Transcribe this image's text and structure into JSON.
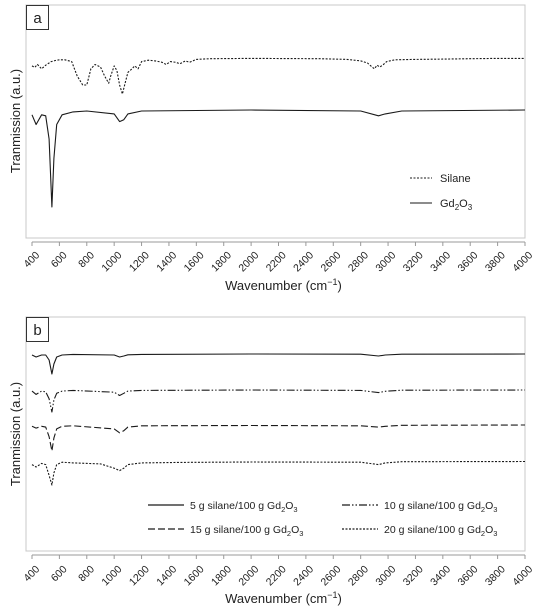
{
  "chart_data": [
    {
      "type": "line",
      "panel_label": "a",
      "xlabel": "Wavenumber (cm",
      "xlabel_sup": "−1",
      "xlabel_close": ")",
      "ylabel": "Tranmission (a.u.)",
      "xlim": [
        400,
        4000
      ],
      "x_ticks": [
        "400",
        "600",
        "800",
        "1000",
        "1200",
        "1400",
        "1600",
        "1800",
        "2000",
        "2200",
        "2400",
        "2600",
        "2800",
        "3000",
        "3200",
        "3400",
        "3600",
        "3800",
        "4000"
      ],
      "legend_position": "lower-right",
      "series": [
        {
          "name": "Silane",
          "style": "dotted",
          "points": [
            [
              400,
              0.22
            ],
            [
              420,
              0.26
            ],
            [
              440,
              0.18
            ],
            [
              470,
              0.3
            ],
            [
              500,
              0.2
            ],
            [
              540,
              0.1
            ],
            [
              570,
              0.07
            ],
            [
              600,
              0.05
            ],
            [
              640,
              0.05
            ],
            [
              690,
              0.1
            ],
            [
              730,
              0.5
            ],
            [
              770,
              0.75
            ],
            [
              800,
              0.75
            ],
            [
              830,
              0.3
            ],
            [
              860,
              0.18
            ],
            [
              900,
              0.25
            ],
            [
              930,
              0.5
            ],
            [
              960,
              0.7
            ],
            [
              975,
              0.5
            ],
            [
              1000,
              0.22
            ],
            [
              1020,
              0.35
            ],
            [
              1040,
              0.75
            ],
            [
              1060,
              1.0
            ],
            [
              1080,
              0.7
            ],
            [
              1100,
              0.4
            ],
            [
              1130,
              0.3
            ],
            [
              1150,
              0.22
            ],
            [
              1175,
              0.3
            ],
            [
              1200,
              0.1
            ],
            [
              1250,
              0.06
            ],
            [
              1300,
              0.08
            ],
            [
              1350,
              0.12
            ],
            [
              1380,
              0.18
            ],
            [
              1410,
              0.1
            ],
            [
              1450,
              0.12
            ],
            [
              1480,
              0.16
            ],
            [
              1520,
              0.08
            ],
            [
              1550,
              0.12
            ],
            [
              1600,
              0.04
            ],
            [
              1700,
              0.02
            ],
            [
              2000,
              0.01
            ],
            [
              2500,
              0.02
            ],
            [
              2700,
              0.04
            ],
            [
              2800,
              0.08
            ],
            [
              2850,
              0.14
            ],
            [
              2880,
              0.24
            ],
            [
              2900,
              0.3
            ],
            [
              2920,
              0.2
            ],
            [
              2940,
              0.25
            ],
            [
              2960,
              0.2
            ],
            [
              2990,
              0.1
            ],
            [
              3050,
              0.05
            ],
            [
              3200,
              0.04
            ],
            [
              3400,
              0.03
            ],
            [
              3600,
              0.02
            ],
            [
              3800,
              0.01
            ],
            [
              4000,
              0.01
            ]
          ]
        },
        {
          "name": "Gd₂O₃",
          "name_base": "Gd",
          "name_sub1": "2",
          "name_mid": "O",
          "name_sub2": "3",
          "style": "solid",
          "points": [
            [
              400,
              0.05
            ],
            [
              430,
              0.15
            ],
            [
              470,
              0.05
            ],
            [
              500,
              0.06
            ],
            [
              525,
              0.3
            ],
            [
              545,
              1.0
            ],
            [
              560,
              0.5
            ],
            [
              580,
              0.15
            ],
            [
              620,
              0.05
            ],
            [
              700,
              0.02
            ],
            [
              800,
              0.01
            ],
            [
              1000,
              0.04
            ],
            [
              1040,
              0.12
            ],
            [
              1070,
              0.1
            ],
            [
              1100,
              0.04
            ],
            [
              1200,
              0.01
            ],
            [
              2000,
              0.0
            ],
            [
              2800,
              0.01
            ],
            [
              2930,
              0.06
            ],
            [
              2980,
              0.04
            ],
            [
              3100,
              0.01
            ],
            [
              4000,
              0.0
            ]
          ]
        }
      ]
    },
    {
      "type": "line",
      "panel_label": "b",
      "xlabel": "Wavenumber (cm",
      "xlabel_sup": "−1",
      "xlabel_close": ")",
      "ylabel": "Tranmission (a.u.)",
      "xlim": [
        400,
        4000
      ],
      "x_ticks": [
        "400",
        "600",
        "800",
        "1000",
        "1200",
        "1400",
        "1600",
        "1800",
        "2000",
        "2200",
        "2400",
        "2600",
        "2800",
        "3000",
        "3200",
        "3400",
        "3600",
        "3800",
        "4000"
      ],
      "legend_position": "bottom",
      "series": [
        {
          "name": "5 g silane/100 g Gd₂O₃",
          "label_pre": "5 g silane/100 g Gd",
          "style": "solid",
          "points": [
            [
              400,
              0.05
            ],
            [
              430,
              0.15
            ],
            [
              470,
              0.05
            ],
            [
              500,
              0.05
            ],
            [
              525,
              0.3
            ],
            [
              545,
              1.0
            ],
            [
              560,
              0.5
            ],
            [
              580,
              0.15
            ],
            [
              620,
              0.05
            ],
            [
              700,
              0.02
            ],
            [
              1000,
              0.05
            ],
            [
              1040,
              0.15
            ],
            [
              1070,
              0.1
            ],
            [
              1100,
              0.04
            ],
            [
              1200,
              0.02
            ],
            [
              2000,
              0.0
            ],
            [
              2800,
              0.01
            ],
            [
              2930,
              0.1
            ],
            [
              2980,
              0.05
            ],
            [
              3100,
              0.01
            ],
            [
              4000,
              0.0
            ]
          ]
        },
        {
          "name": "10 g silane/100 g Gd₂O₃",
          "label_pre": "10 g silane/100 g Gd",
          "style": "dashdot",
          "points": [
            [
              400,
              0.05
            ],
            [
              430,
              0.2
            ],
            [
              470,
              0.05
            ],
            [
              500,
              0.08
            ],
            [
              525,
              0.4
            ],
            [
              545,
              1.0
            ],
            [
              560,
              0.45
            ],
            [
              580,
              0.15
            ],
            [
              620,
              0.05
            ],
            [
              700,
              0.02
            ],
            [
              1000,
              0.1
            ],
            [
              1040,
              0.25
            ],
            [
              1070,
              0.15
            ],
            [
              1100,
              0.05
            ],
            [
              1200,
              0.02
            ],
            [
              2000,
              0.0
            ],
            [
              2800,
              0.02
            ],
            [
              2930,
              0.12
            ],
            [
              2980,
              0.06
            ],
            [
              3100,
              0.01
            ],
            [
              4000,
              0.0
            ]
          ]
        },
        {
          "name": "15 g silane/100 g Gd₂O₃",
          "label_pre": "15 g silane/100 g Gd",
          "style": "dashed",
          "points": [
            [
              400,
              0.05
            ],
            [
              430,
              0.12
            ],
            [
              470,
              0.05
            ],
            [
              500,
              0.08
            ],
            [
              525,
              0.45
            ],
            [
              545,
              1.0
            ],
            [
              560,
              0.5
            ],
            [
              580,
              0.15
            ],
            [
              620,
              0.05
            ],
            [
              700,
              0.03
            ],
            [
              1000,
              0.15
            ],
            [
              1040,
              0.3
            ],
            [
              1070,
              0.22
            ],
            [
              1100,
              0.08
            ],
            [
              1200,
              0.03
            ],
            [
              2000,
              0.02
            ],
            [
              2800,
              0.03
            ],
            [
              2930,
              0.08
            ],
            [
              2980,
              0.05
            ],
            [
              3100,
              0.01
            ],
            [
              4000,
              0.0
            ]
          ]
        },
        {
          "name": "20 g silane/100 g Gd₂O₃",
          "label_pre": "20 g silane/100 g Gd",
          "style": "dotted",
          "points": [
            [
              400,
              0.15
            ],
            [
              430,
              0.25
            ],
            [
              470,
              0.1
            ],
            [
              500,
              0.15
            ],
            [
              525,
              0.6
            ],
            [
              545,
              1.0
            ],
            [
              560,
              0.5
            ],
            [
              580,
              0.15
            ],
            [
              620,
              0.05
            ],
            [
              700,
              0.08
            ],
            [
              900,
              0.12
            ],
            [
              1000,
              0.3
            ],
            [
              1040,
              0.4
            ],
            [
              1070,
              0.3
            ],
            [
              1100,
              0.15
            ],
            [
              1200,
              0.08
            ],
            [
              1500,
              0.06
            ],
            [
              2000,
              0.04
            ],
            [
              2800,
              0.05
            ],
            [
              2930,
              0.15
            ],
            [
              2980,
              0.08
            ],
            [
              3100,
              0.03
            ],
            [
              4000,
              0.02
            ]
          ]
        }
      ]
    }
  ]
}
